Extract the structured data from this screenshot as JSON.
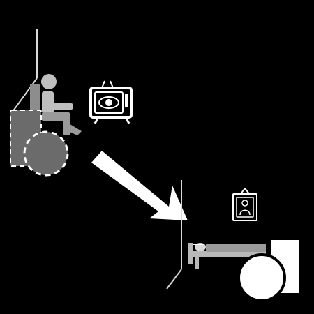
{
  "scene": {
    "background": "#000000",
    "palette": {
      "room_line": "#d9d9d9",
      "person_light": "#bfbfbf",
      "person_mid": "#9a9a9a",
      "chair_dark": "#6b6b6b",
      "white": "#ffffff",
      "arrow": "#ffffff",
      "bed_frame": "#b8b8b8"
    },
    "icons": [
      "corner-room-icon",
      "wheelchair-person-icon",
      "television-eye-icon",
      "direction-arrow-icon",
      "bed-person-icon",
      "picture-frame-icon",
      "large-wheel-icon"
    ]
  }
}
